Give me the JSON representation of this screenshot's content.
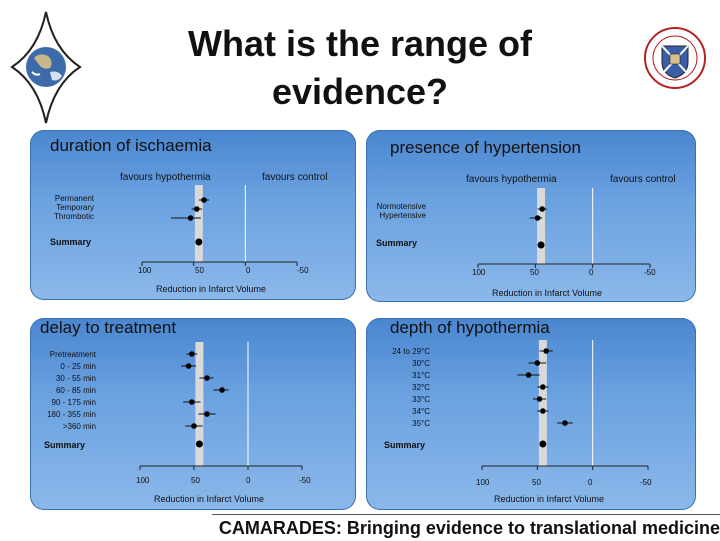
{
  "slide": {
    "title_line1": "What is the range of",
    "title_line2": "evidence?",
    "footer": "CAMARADES: Bringing evidence to translational medicine"
  },
  "colors": {
    "panel_top": "#4a86cf",
    "panel_bottom": "#8bb8ea",
    "band": "#d9d9d9"
  },
  "panels": [
    {
      "title": "duration of ischaemia",
      "favours_left": "favours hypothermia",
      "favours_right": "favours control",
      "rows": [
        "Permanent",
        "Temporary",
        "Thrombotic"
      ],
      "summary_label": "Summary",
      "xticks": [
        "100",
        "50",
        "0",
        "-50"
      ],
      "xlabel": "Reduction in Infarct Volume"
    },
    {
      "title": "presence of hypertension",
      "favours_left": "favours hypothermia",
      "favours_right": "favours control",
      "rows": [
        "Normotensive",
        "Hypertensive"
      ],
      "summary_label": "Summary",
      "xticks": [
        "100",
        "50",
        "0",
        "-50"
      ],
      "xlabel": "Reduction in Infarct Volume"
    },
    {
      "title": "delay to treatment",
      "rows": [
        "Pretreatment",
        "0 - 25 min",
        "30 - 55 min",
        "60 - 85 min",
        "90 - 175 min",
        "180 - 355 min",
        ">360 min"
      ],
      "summary_label": "Summary",
      "xticks": [
        "100",
        "50",
        "0",
        "-50"
      ],
      "xlabel": "Reduction in Infarct Volume"
    },
    {
      "title": "depth of hypothermia",
      "rows": [
        "24 to 29°C",
        "30°C",
        "31°C",
        "32°C",
        "33°C",
        "34°C",
        "35°C"
      ],
      "summary_label": "Summary",
      "xticks": [
        "100",
        "50",
        "0",
        "-50"
      ],
      "xlabel": "Reduction in Infarct Volume"
    }
  ],
  "chart_data": [
    {
      "type": "scatter",
      "title": "duration of ischaemia",
      "xlabel": "Reduction in Infarct Volume",
      "xlim": [
        100,
        -50
      ],
      "categories": [
        "Permanent",
        "Temporary",
        "Thrombotic",
        "Summary"
      ],
      "values": [
        40,
        47,
        53,
        45
      ],
      "ci_low": [
        35,
        42,
        43,
        43
      ],
      "ci_high": [
        45,
        52,
        72,
        47
      ]
    },
    {
      "type": "scatter",
      "title": "presence of hypertension",
      "xlabel": "Reduction in Infarct Volume",
      "xlim": [
        100,
        -50
      ],
      "categories": [
        "Normotensive",
        "Hypertensive",
        "Summary"
      ],
      "values": [
        44,
        48,
        45
      ],
      "ci_low": [
        40,
        44,
        43
      ],
      "ci_high": [
        48,
        55,
        47
      ]
    },
    {
      "type": "scatter",
      "title": "delay to treatment",
      "xlabel": "Reduction in Infarct Volume",
      "xlim": [
        100,
        -50
      ],
      "categories": [
        "Pretreatment",
        "0 - 25 min",
        "30 - 55 min",
        "60 - 85 min",
        "90 - 175 min",
        "180 - 355 min",
        ">360 min",
        "Summary"
      ],
      "values": [
        52,
        55,
        38,
        24,
        52,
        38,
        50,
        45
      ],
      "ci_low": [
        47,
        48,
        32,
        18,
        44,
        30,
        42,
        43
      ],
      "ci_high": [
        57,
        62,
        45,
        32,
        60,
        46,
        58,
        47
      ]
    },
    {
      "type": "scatter",
      "title": "depth of hypothermia",
      "xlabel": "Reduction in Infarct Volume",
      "xlim": [
        100,
        -50
      ],
      "categories": [
        "24 to 29°C",
        "30°C",
        "31°C",
        "32°C",
        "33°C",
        "34°C",
        "35°C",
        "Summary"
      ],
      "values": [
        42,
        50,
        58,
        45,
        48,
        45,
        25,
        45
      ],
      "ci_low": [
        36,
        42,
        48,
        40,
        42,
        40,
        18,
        43
      ],
      "ci_high": [
        48,
        58,
        68,
        50,
        54,
        50,
        32,
        47
      ]
    }
  ]
}
